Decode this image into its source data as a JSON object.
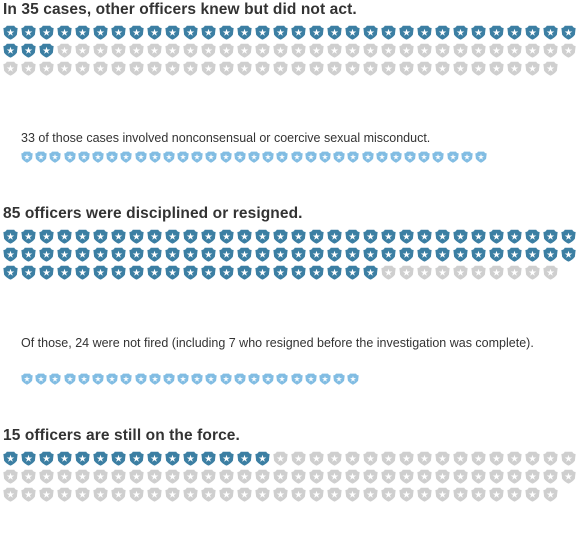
{
  "colors": {
    "dark": "#3c7fa3",
    "light": "#82bde3",
    "gray": "#cfcfcf"
  },
  "sections": [
    {
      "heading": "In 35 cases, other officers knew but did not act.",
      "grid": {
        "total": 95,
        "highlighted": 35
      },
      "note": "33 of those cases involved nonconsensual or coercive sexual misconduct.",
      "subgrid": {
        "total": 33
      }
    },
    {
      "heading": "85 officers were disciplined or resigned.",
      "grid": {
        "total": 95,
        "highlighted": 85
      },
      "note": "Of those, 24 were not fired (including 7 who resigned before the investigation was complete).",
      "subgrid": {
        "total": 24
      }
    },
    {
      "heading": "15 officers are still on the force.",
      "grid": {
        "total": 95,
        "highlighted": 15
      }
    }
  ]
}
